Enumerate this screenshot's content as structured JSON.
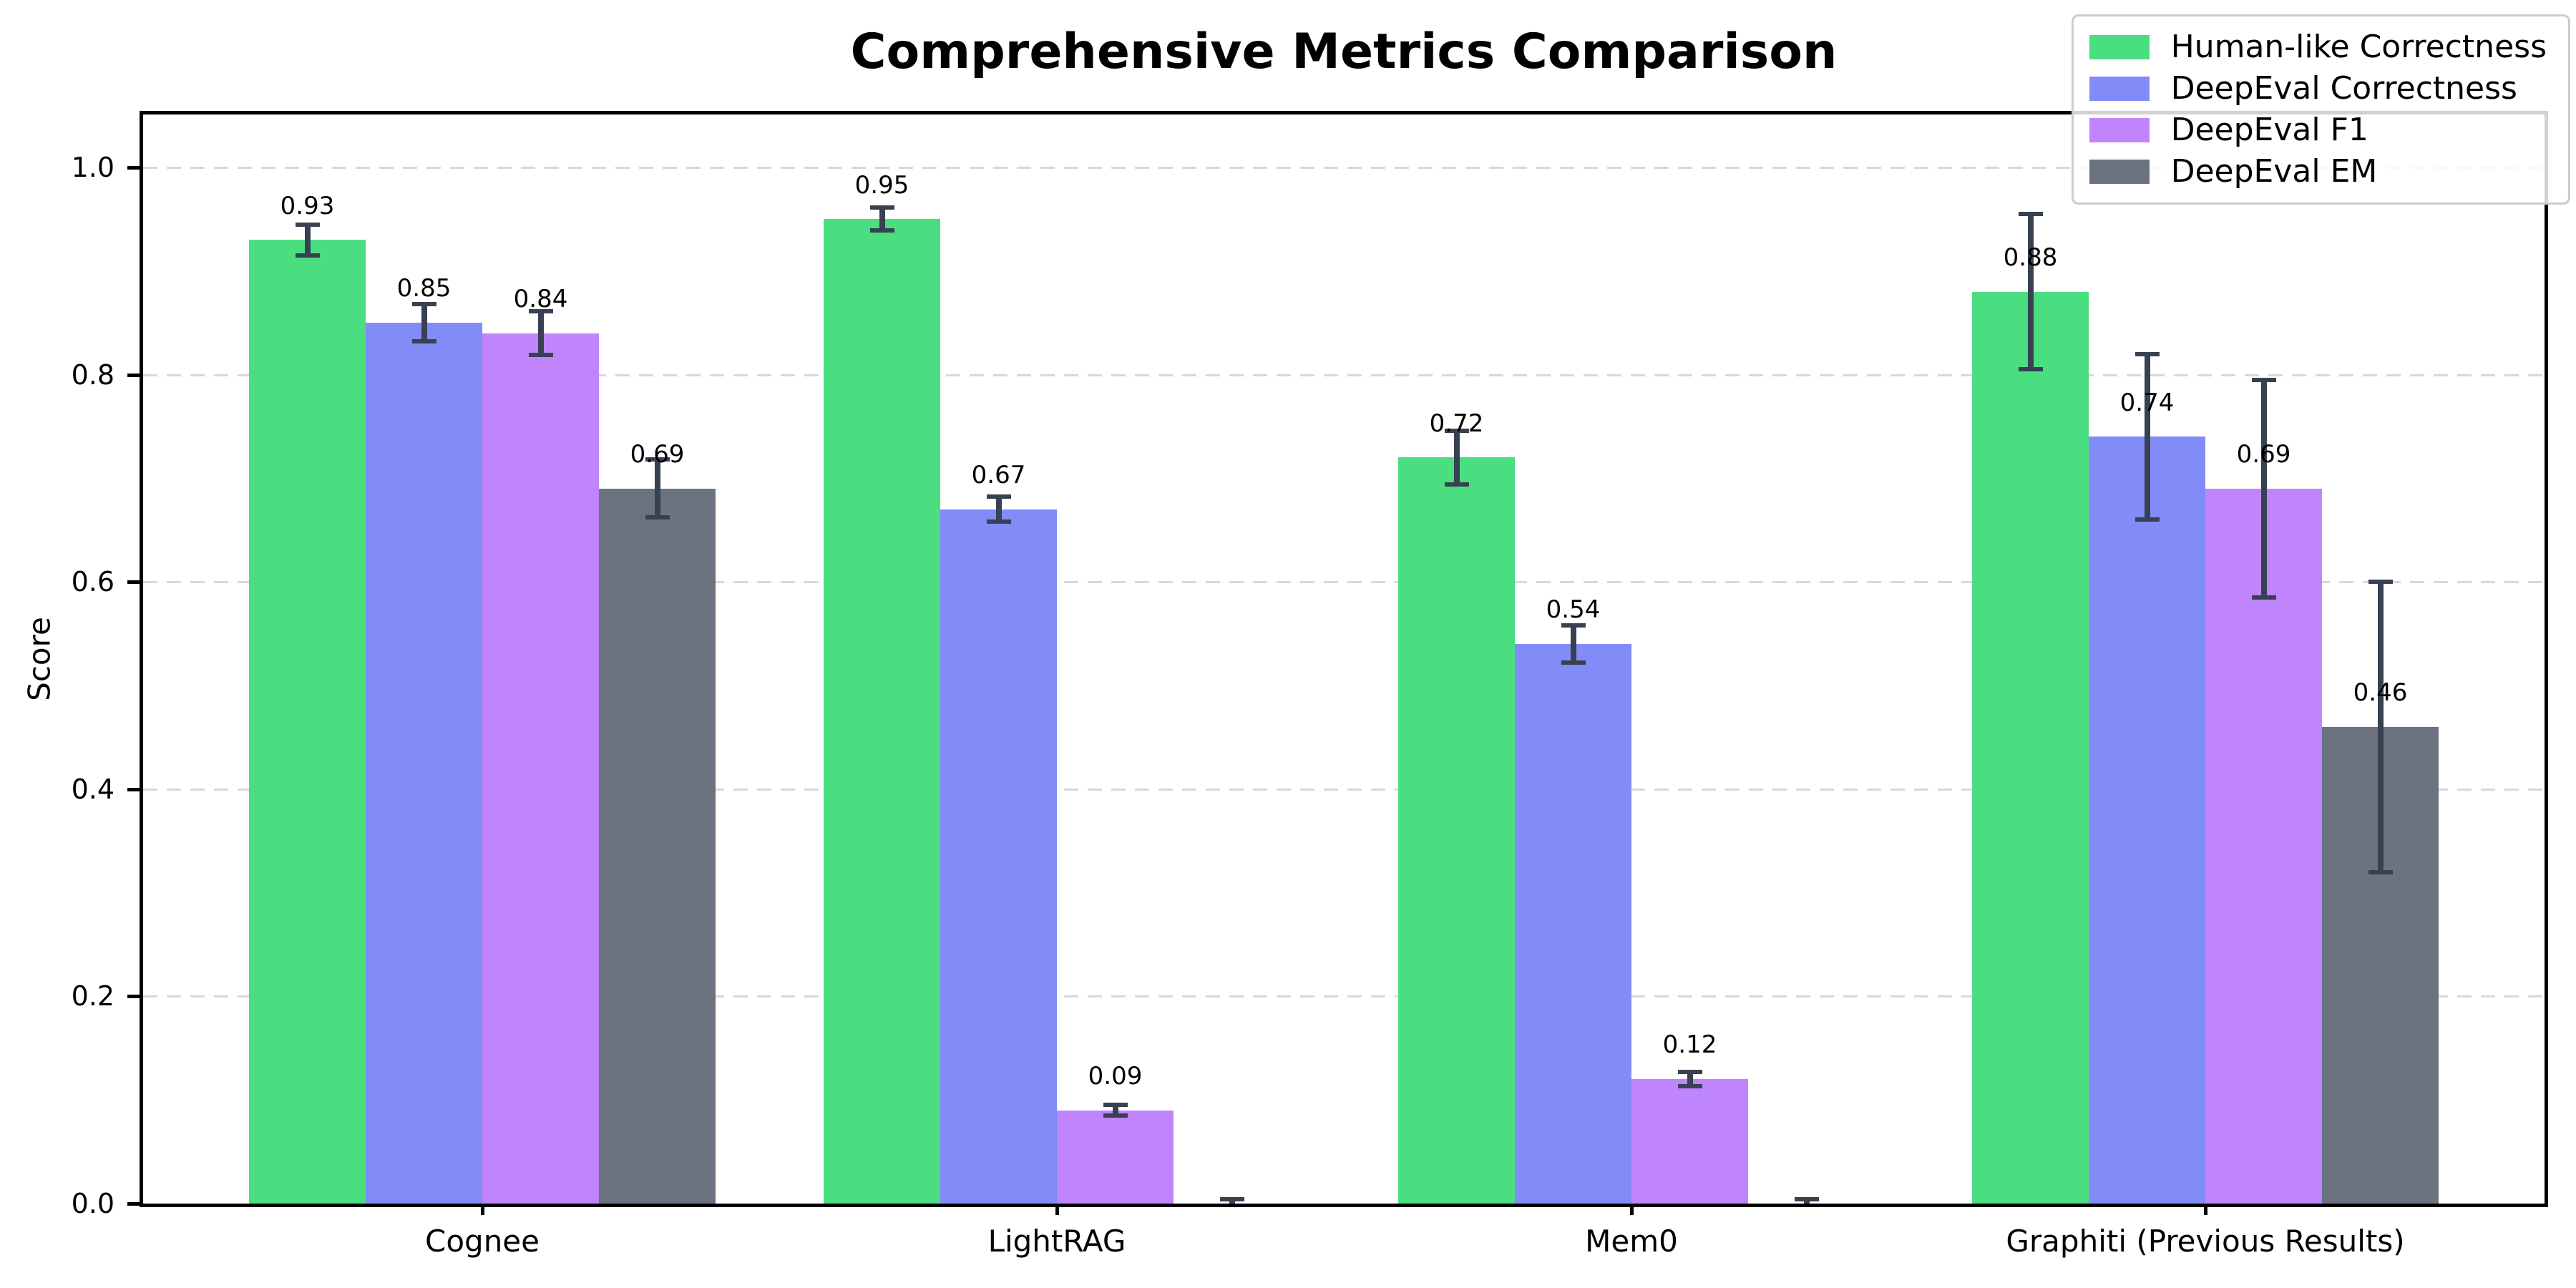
{
  "chart_data": {
    "type": "bar",
    "title": "Comprehensive Metrics Comparison",
    "ylabel": "Score",
    "xlabel": "",
    "categories": [
      "Cognee",
      "LightRAG",
      "Mem0",
      "Graphiti (Previous Results)"
    ],
    "series": [
      {
        "name": "Human-like Correctness",
        "color": "#4ade80",
        "values": [
          0.93,
          0.95,
          0.72,
          0.88
        ],
        "errors": [
          0.015,
          0.011,
          0.026,
          0.075
        ],
        "labels": [
          "0.93",
          "0.95",
          "0.72",
          "0.88"
        ]
      },
      {
        "name": "DeepEval Correctness",
        "color": "#818cf8",
        "values": [
          0.85,
          0.67,
          0.54,
          0.74
        ],
        "errors": [
          0.018,
          0.012,
          0.018,
          0.08
        ],
        "labels": [
          "0.85",
          "0.67",
          "0.54",
          "0.74"
        ]
      },
      {
        "name": "DeepEval F1",
        "color": "#c084fc",
        "values": [
          0.84,
          0.09,
          0.12,
          0.69
        ],
        "errors": [
          0.021,
          0.005,
          0.007,
          0.105
        ],
        "labels": [
          "0.84",
          "0.09",
          "0.12",
          "0.69"
        ]
      },
      {
        "name": "DeepEval EM",
        "color": "#6b7280",
        "values": [
          0.69,
          0.0,
          0.0,
          0.46
        ],
        "errors": [
          0.028,
          0.004,
          0.004,
          0.14
        ],
        "labels": [
          "0.69",
          null,
          null,
          "0.46"
        ]
      }
    ],
    "yticks": [
      "0.0",
      "0.2",
      "0.4",
      "0.6",
      "0.8",
      "1.0"
    ],
    "ylim": [
      0.0,
      1.05
    ],
    "grid": {
      "axis": "y",
      "style": "dashed",
      "color": "#d8d8dc"
    },
    "error_bar_color": "#374151",
    "legend_position": "upper right"
  }
}
